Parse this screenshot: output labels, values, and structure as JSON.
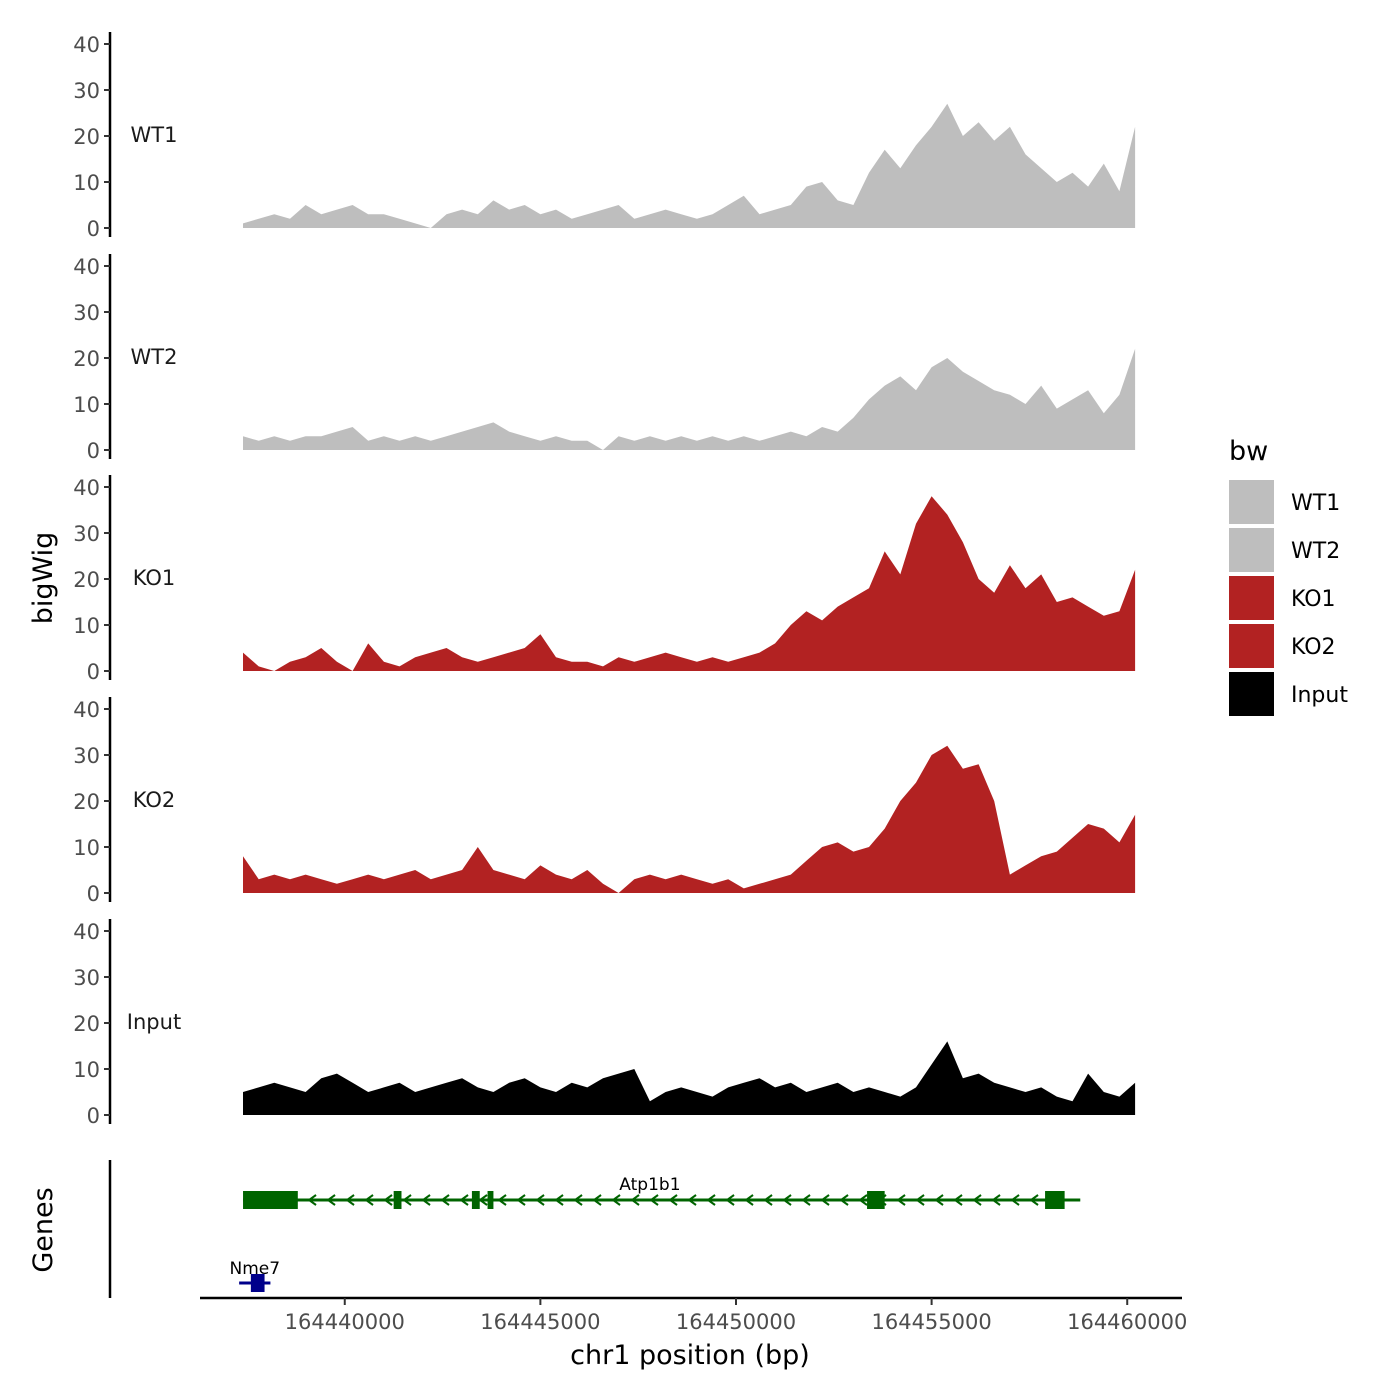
{
  "chart_data": {
    "type": "area",
    "title": "",
    "xlabel": "chr1 position (bp)",
    "ylabel": "bigWig",
    "genes_label": "Genes",
    "xlim": [
      164436300,
      164461400
    ],
    "x_ticks": [
      164440000,
      164445000,
      164450000,
      164455000,
      164460000
    ],
    "x_tick_labels": [
      "164440000",
      "164445000",
      "164450000",
      "164455000",
      "164460000"
    ],
    "ylim": [
      0,
      42
    ],
    "y_ticks": [
      0,
      10,
      20,
      30,
      40
    ],
    "y_tick_labels": [
      "0",
      "10",
      "20",
      "30",
      "40"
    ],
    "legend": {
      "title": "bw",
      "position": "right",
      "entries": [
        {
          "label": "WT1",
          "color": "#bebebe"
        },
        {
          "label": "WT2",
          "color": "#bebebe"
        },
        {
          "label": "KO1",
          "color": "#b22222"
        },
        {
          "label": "KO2",
          "color": "#b22222"
        },
        {
          "label": "Input",
          "color": "#000000"
        }
      ]
    },
    "x": [
      164437400,
      164437800,
      164438200,
      164438600,
      164439000,
      164439400,
      164439800,
      164440200,
      164440600,
      164441000,
      164441400,
      164441800,
      164442200,
      164442600,
      164443000,
      164443400,
      164443800,
      164444200,
      164444600,
      164445000,
      164445400,
      164445800,
      164446200,
      164446600,
      164447000,
      164447400,
      164447800,
      164448200,
      164448600,
      164449000,
      164449400,
      164449800,
      164450200,
      164450600,
      164451000,
      164451400,
      164451800,
      164452200,
      164452600,
      164453000,
      164453400,
      164453800,
      164454200,
      164454600,
      164455000,
      164455400,
      164455800,
      164456200,
      164456600,
      164457000,
      164457400,
      164457800,
      164458200,
      164458600,
      164459000,
      164459400,
      164459800,
      164460200
    ],
    "series": [
      {
        "name": "WT1",
        "color": "#bebebe",
        "values": [
          1,
          2,
          3,
          2,
          5,
          3,
          4,
          5,
          3,
          3,
          2,
          1,
          0,
          3,
          4,
          3,
          6,
          4,
          5,
          3,
          4,
          2,
          3,
          4,
          5,
          2,
          3,
          4,
          3,
          2,
          3,
          5,
          7,
          3,
          4,
          5,
          9,
          10,
          6,
          5,
          12,
          17,
          13,
          18,
          22,
          27,
          20,
          23,
          19,
          22,
          16,
          13,
          10,
          12,
          9,
          14,
          8,
          22
        ]
      },
      {
        "name": "WT2",
        "color": "#bebebe",
        "values": [
          3,
          2,
          3,
          2,
          3,
          3,
          4,
          5,
          2,
          3,
          2,
          3,
          2,
          3,
          4,
          5,
          6,
          4,
          3,
          2,
          3,
          2,
          2,
          0,
          3,
          2,
          3,
          2,
          3,
          2,
          3,
          2,
          3,
          2,
          3,
          4,
          3,
          5,
          4,
          7,
          11,
          14,
          16,
          13,
          18,
          20,
          17,
          15,
          13,
          12,
          10,
          14,
          9,
          11,
          13,
          8,
          12,
          22
        ]
      },
      {
        "name": "KO1",
        "color": "#b22222",
        "values": [
          4,
          1,
          0,
          2,
          3,
          5,
          2,
          0,
          6,
          2,
          1,
          3,
          4,
          5,
          3,
          2,
          3,
          4,
          5,
          8,
          3,
          2,
          2,
          1,
          3,
          2,
          3,
          4,
          3,
          2,
          3,
          2,
          3,
          4,
          6,
          10,
          13,
          11,
          14,
          16,
          18,
          26,
          21,
          32,
          38,
          34,
          28,
          20,
          17,
          23,
          18,
          21,
          15,
          16,
          14,
          12,
          13,
          22
        ]
      },
      {
        "name": "KO2",
        "color": "#b22222",
        "values": [
          8,
          3,
          4,
          3,
          4,
          3,
          2,
          3,
          4,
          3,
          4,
          5,
          3,
          4,
          5,
          10,
          5,
          4,
          3,
          6,
          4,
          3,
          5,
          2,
          0,
          3,
          4,
          3,
          4,
          3,
          2,
          3,
          1,
          2,
          3,
          4,
          7,
          10,
          11,
          9,
          10,
          14,
          20,
          24,
          30,
          32,
          27,
          28,
          20,
          4,
          6,
          8,
          9,
          12,
          15,
          14,
          11,
          17
        ]
      },
      {
        "name": "Input",
        "color": "#000000",
        "values": [
          5,
          6,
          7,
          6,
          5,
          8,
          9,
          7,
          5,
          6,
          7,
          5,
          6,
          7,
          8,
          6,
          5,
          7,
          8,
          6,
          5,
          7,
          6,
          8,
          9,
          10,
          3,
          5,
          6,
          5,
          4,
          6,
          7,
          8,
          6,
          7,
          5,
          6,
          7,
          5,
          6,
          5,
          4,
          6,
          11,
          16,
          8,
          9,
          7,
          6,
          5,
          6,
          4,
          3,
          9,
          5,
          4,
          7
        ]
      }
    ],
    "genes": [
      {
        "name": "Atp1b1",
        "color": "#006400",
        "strand": "-",
        "start": 164437400,
        "end": 164458800,
        "exons": [
          [
            164437400,
            164438800
          ],
          [
            164441250,
            164441450
          ],
          [
            164443250,
            164443450
          ],
          [
            164443650,
            164443800
          ],
          [
            164453350,
            164453800
          ],
          [
            164457900,
            164458400
          ]
        ]
      },
      {
        "name": "Nme7",
        "color": "#00008b",
        "strand": "+",
        "start": 164437300,
        "end": 164438100,
        "exons": [
          [
            164437600,
            164437950
          ]
        ]
      }
    ]
  }
}
